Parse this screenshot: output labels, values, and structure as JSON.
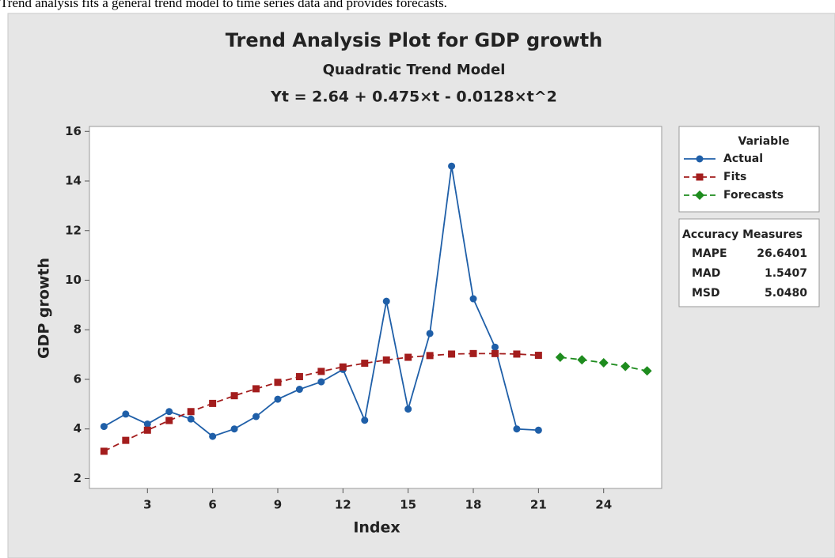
{
  "caption": "Trend analysis fits a general trend model to time series data and provides forecasts.",
  "chart_data": {
    "type": "line",
    "title": "Trend Analysis Plot for GDP growth",
    "subtitle": "Quadratic Trend Model",
    "equation": "Yt = 2.64 + 0.475×t - 0.0128×t^2",
    "x_label": "Index",
    "y_label": "GDP growth",
    "xlim": [
      0.33,
      26.67
    ],
    "ylim": [
      1.6,
      16.2
    ],
    "xticks": [
      3,
      6,
      9,
      12,
      15,
      18,
      21,
      24
    ],
    "yticks": [
      2,
      4,
      6,
      8,
      10,
      12,
      14,
      16
    ],
    "legend_title": "Variable",
    "series": [
      {
        "name": "Actual",
        "color": "#1f5fa8",
        "marker": "circle",
        "dash": "solid",
        "x": [
          1,
          2,
          3,
          4,
          5,
          6,
          7,
          8,
          9,
          10,
          11,
          12,
          13,
          14,
          15,
          16,
          17,
          18,
          19,
          20,
          21
        ],
        "values": [
          4.1,
          4.6,
          4.2,
          4.7,
          4.4,
          3.7,
          4.0,
          4.5,
          5.2,
          5.6,
          5.9,
          6.4,
          4.35,
          9.15,
          4.8,
          7.85,
          14.6,
          9.25,
          7.3,
          4.0,
          3.95
        ]
      },
      {
        "name": "Fits",
        "color": "#a31d1d",
        "marker": "square",
        "dash": "dashed",
        "x": [
          1,
          2,
          3,
          4,
          5,
          6,
          7,
          8,
          9,
          10,
          11,
          12,
          13,
          14,
          15,
          16,
          17,
          18,
          19,
          20,
          21
        ],
        "values": [
          3.1,
          3.54,
          3.95,
          4.34,
          4.7,
          5.03,
          5.34,
          5.62,
          5.88,
          6.11,
          6.32,
          6.5,
          6.65,
          6.78,
          6.89,
          6.96,
          7.02,
          7.04,
          7.04,
          7.02,
          6.97
        ]
      },
      {
        "name": "Forecasts",
        "color": "#1e8c1e",
        "marker": "diamond",
        "dash": "dashed",
        "x": [
          22,
          23,
          24,
          25,
          26
        ],
        "values": [
          6.89,
          6.79,
          6.67,
          6.52,
          6.34
        ]
      }
    ],
    "accuracy_measures": {
      "title": "Accuracy Measures",
      "rows": [
        [
          "MAPE",
          "26.6401"
        ],
        [
          "MAD",
          "1.5407"
        ],
        [
          "MSD",
          "5.0480"
        ]
      ]
    }
  }
}
